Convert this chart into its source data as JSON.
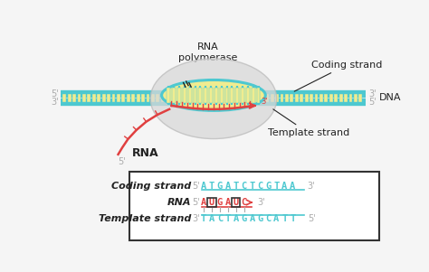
{
  "bg_color": "#f5f5f5",
  "dna_strand_color": "#4dc8d0",
  "dna_fill_color": "#f0ec90",
  "rna_color": "#e04040",
  "label_color": "#222222",
  "gray_label_color": "#aaaaaa",
  "box_bg": "#ffffff",
  "coding_strand_seq": "ATGATCTCGTAA",
  "rna_seq": "AUGAUC",
  "template_strand_seq": "TACTAGAGCATT",
  "coding_label": "Coding strand",
  "rna_label": "RNA",
  "template_label": "Template strand",
  "dna_label": "DNA",
  "rna_poly_label": "RNA\npolymerase",
  "coding_strand_ann": "Coding strand",
  "template_strand_ann": "Template strand",
  "rna_ann": "RNA",
  "cloud_color": "#d8d8d8",
  "cloud_edge": "#bbbbbb"
}
